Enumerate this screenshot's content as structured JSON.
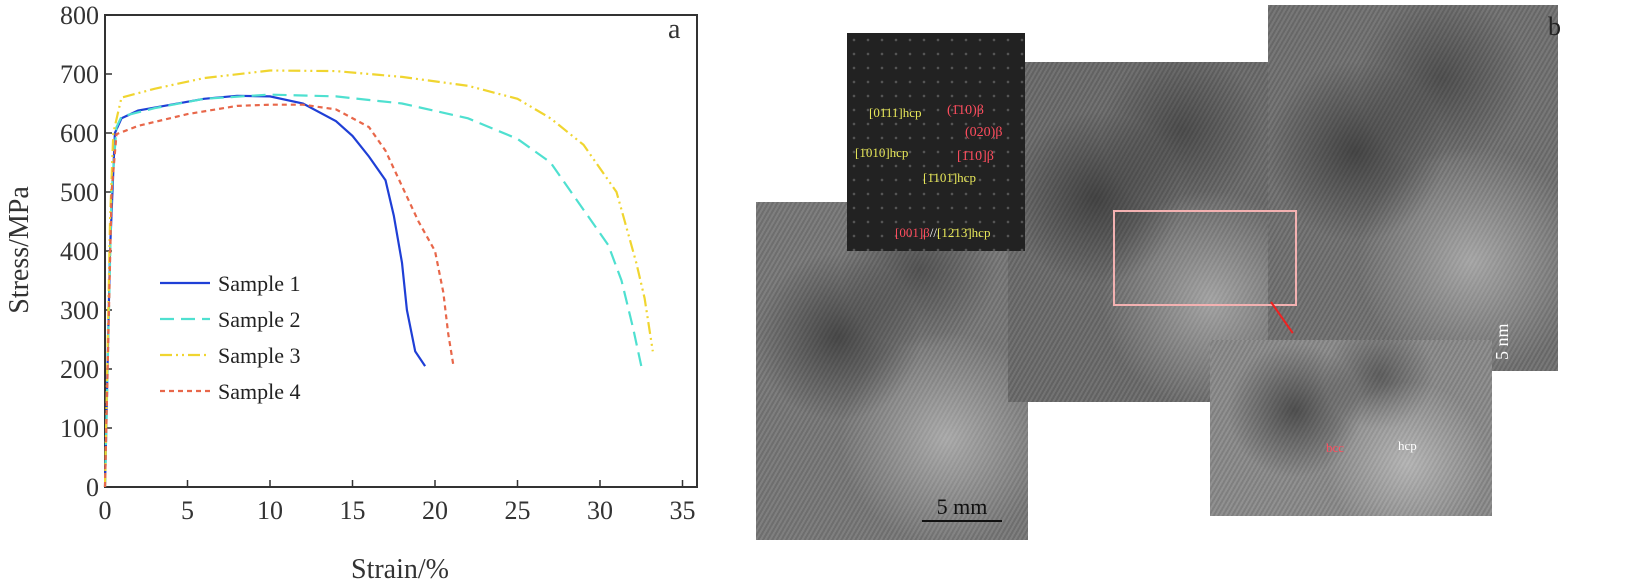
{
  "chart_data": {
    "type": "line",
    "panel_label": "a",
    "xlabel": "Strain/%",
    "ylabel": "Stress/MPa",
    "xlim": [
      0,
      37.5
    ],
    "ylim": [
      0,
      800
    ],
    "xticks": [
      "0",
      "5",
      "10",
      "15",
      "20",
      "25",
      "30",
      "35"
    ],
    "yticks": [
      "0",
      "100",
      "200",
      "300",
      "400",
      "500",
      "600",
      "700",
      "800"
    ],
    "legend_position": "center-left",
    "series": [
      {
        "name": "Sample 1",
        "color": "#1f3fd6",
        "dash": "",
        "points": [
          [
            0,
            0
          ],
          [
            0.3,
            400
          ],
          [
            0.6,
            600
          ],
          [
            1,
            625
          ],
          [
            2,
            638
          ],
          [
            4,
            648
          ],
          [
            6,
            658
          ],
          [
            8,
            663
          ],
          [
            10,
            662
          ],
          [
            12,
            650
          ],
          [
            14,
            620
          ],
          [
            15,
            595
          ],
          [
            16,
            560
          ],
          [
            17,
            520
          ],
          [
            17.5,
            460
          ],
          [
            18,
            380
          ],
          [
            18.3,
            300
          ],
          [
            18.8,
            230
          ],
          [
            19.4,
            205
          ]
        ]
      },
      {
        "name": "Sample 2",
        "color": "#4fe0d0",
        "dash": "14 7",
        "points": [
          [
            0,
            0
          ],
          [
            0.4,
            500
          ],
          [
            0.7,
            610
          ],
          [
            1,
            628
          ],
          [
            3,
            642
          ],
          [
            6,
            658
          ],
          [
            10,
            665
          ],
          [
            14,
            662
          ],
          [
            18,
            650
          ],
          [
            22,
            625
          ],
          [
            25,
            590
          ],
          [
            27,
            550
          ],
          [
            29,
            470
          ],
          [
            30.5,
            410
          ],
          [
            31.3,
            350
          ],
          [
            32,
            270
          ],
          [
            32.5,
            205
          ]
        ]
      },
      {
        "name": "Sample 3",
        "color": "#f0d530",
        "dash": "12 4 2 4 2 4",
        "points": [
          [
            0,
            0
          ],
          [
            0.3,
            450
          ],
          [
            0.5,
            600
          ],
          [
            1,
            660
          ],
          [
            3,
            675
          ],
          [
            6,
            693
          ],
          [
            10,
            706
          ],
          [
            14,
            705
          ],
          [
            18,
            695
          ],
          [
            22,
            680
          ],
          [
            25,
            658
          ],
          [
            27,
            625
          ],
          [
            29,
            580
          ],
          [
            31,
            500
          ],
          [
            31.5,
            450
          ],
          [
            32.2,
            380
          ],
          [
            32.7,
            320
          ],
          [
            33.2,
            230
          ]
        ]
      },
      {
        "name": "Sample 4",
        "color": "#e8674a",
        "dash": "5 4",
        "points": [
          [
            0,
            0
          ],
          [
            0.4,
            500
          ],
          [
            0.7,
            598
          ],
          [
            2,
            612
          ],
          [
            5,
            632
          ],
          [
            8,
            646
          ],
          [
            10,
            648
          ],
          [
            12,
            648
          ],
          [
            14,
            640
          ],
          [
            16,
            610
          ],
          [
            17,
            570
          ],
          [
            18,
            510
          ],
          [
            19,
            450
          ],
          [
            20,
            400
          ],
          [
            20.5,
            330
          ],
          [
            20.8,
            260
          ],
          [
            21.1,
            208
          ]
        ]
      }
    ]
  },
  "micrograph": {
    "panel_label": "b",
    "saed_labels": {
      "hcp_0111": "[01̄11]hcp",
      "beta_110bar": "(1̄10)β",
      "beta_020": "(020)β",
      "hcp_1010": "[1̄010]hcp",
      "beta_110": "[1̄10]β",
      "hcp_1101": "[1̄101̄]hcp",
      "zone_beta": "[001]β",
      "zone_sep": "//",
      "zone_hcp": "[12̄13̄]hcp"
    },
    "inset_labels": {
      "bcc": "bcc",
      "hcp": "hcp"
    },
    "scale_bar_main": "5 mm",
    "scale_bar_side": "5 nm"
  }
}
